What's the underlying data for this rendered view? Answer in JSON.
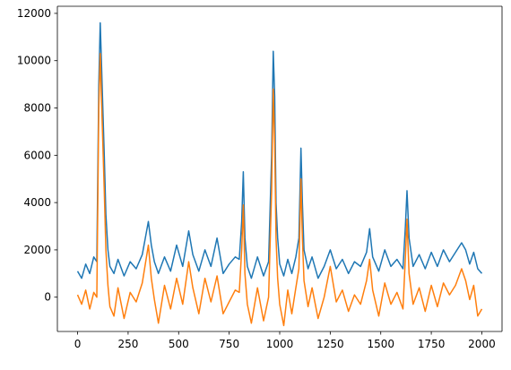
{
  "chart_data": {
    "type": "line",
    "title": "",
    "xlabel": "",
    "ylabel": "",
    "xlim": [
      -100,
      2100
    ],
    "ylim": [
      -1450,
      12300
    ],
    "grid": false,
    "xticks": [
      0,
      250,
      500,
      750,
      1000,
      1250,
      1500,
      1750,
      2000
    ],
    "xtick_labels": [
      "0",
      "250",
      "500",
      "750",
      "1000",
      "1250",
      "1500",
      "1750",
      "2000"
    ],
    "yticks": [
      0,
      2000,
      4000,
      6000,
      8000,
      10000,
      12000
    ],
    "ytick_labels": [
      "0",
      "2000",
      "4000",
      "6000",
      "8000",
      "10000",
      "12000"
    ],
    "series": [
      {
        "color": "#1f77b4",
        "x": [
          0,
          20,
          40,
          60,
          80,
          95,
          105,
          112,
          118,
          125,
          132,
          140,
          150,
          160,
          180,
          200,
          230,
          260,
          290,
          320,
          350,
          365,
          380,
          400,
          430,
          460,
          490,
          520,
          550,
          570,
          600,
          630,
          660,
          690,
          720,
          750,
          780,
          800,
          812,
          820,
          828,
          840,
          860,
          890,
          920,
          945,
          960,
          968,
          975,
          982,
          990,
          1000,
          1020,
          1040,
          1060,
          1080,
          1095,
          1105,
          1112,
          1120,
          1140,
          1160,
          1190,
          1220,
          1250,
          1280,
          1310,
          1340,
          1370,
          1400,
          1430,
          1445,
          1460,
          1490,
          1520,
          1550,
          1580,
          1610,
          1622,
          1630,
          1640,
          1660,
          1690,
          1720,
          1750,
          1780,
          1810,
          1840,
          1870,
          1900,
          1920,
          1940,
          1960,
          1980,
          2000
        ],
        "values": [
          1100,
          800,
          1400,
          1000,
          1700,
          1500,
          9000,
          11600,
          10000,
          8000,
          6000,
          3500,
          2000,
          1300,
          1000,
          1600,
          900,
          1500,
          1200,
          1800,
          3200,
          2200,
          1500,
          1000,
          1700,
          1100,
          2200,
          1300,
          2800,
          1800,
          1100,
          2000,
          1300,
          2500,
          1000,
          1400,
          1700,
          1600,
          3200,
          5300,
          2500,
          1300,
          800,
          1700,
          900,
          1500,
          6000,
          10400,
          8500,
          4000,
          2500,
          1400,
          900,
          1600,
          1000,
          1700,
          2500,
          6300,
          4000,
          2000,
          1200,
          1700,
          800,
          1300,
          2000,
          1200,
          1600,
          1000,
          1500,
          1300,
          1900,
          2900,
          1700,
          1100,
          2000,
          1300,
          1600,
          1200,
          3000,
          4500,
          2500,
          1300,
          1800,
          1200,
          1900,
          1300,
          2000,
          1500,
          1900,
          2300,
          2000,
          1400,
          1900,
          1200,
          1000
        ]
      },
      {
        "color": "#ff7f0e",
        "x": [
          0,
          20,
          40,
          60,
          80,
          95,
          105,
          112,
          118,
          125,
          132,
          140,
          150,
          160,
          180,
          200,
          230,
          260,
          290,
          320,
          350,
          365,
          380,
          400,
          430,
          460,
          490,
          520,
          550,
          570,
          600,
          630,
          660,
          690,
          720,
          750,
          780,
          800,
          812,
          820,
          828,
          840,
          860,
          890,
          920,
          945,
          960,
          968,
          975,
          982,
          990,
          1000,
          1020,
          1040,
          1060,
          1080,
          1095,
          1105,
          1112,
          1120,
          1140,
          1160,
          1190,
          1220,
          1250,
          1280,
          1310,
          1340,
          1370,
          1400,
          1430,
          1445,
          1460,
          1490,
          1520,
          1550,
          1580,
          1610,
          1622,
          1630,
          1640,
          1660,
          1690,
          1720,
          1750,
          1780,
          1810,
          1840,
          1870,
          1900,
          1920,
          1940,
          1960,
          1980,
          2000
        ],
        "values": [
          100,
          -300,
          300,
          -500,
          200,
          0,
          8000,
          10300,
          8500,
          6500,
          4500,
          2000,
          500,
          -400,
          -800,
          400,
          -900,
          200,
          -200,
          600,
          2200,
          800,
          -100,
          -1100,
          500,
          -500,
          800,
          -300,
          1500,
          400,
          -700,
          800,
          -200,
          900,
          -700,
          -200,
          300,
          200,
          2000,
          3900,
          1000,
          -300,
          -1100,
          400,
          -1000,
          0,
          4500,
          8800,
          6500,
          2500,
          800,
          -300,
          -1200,
          300,
          -700,
          400,
          1200,
          5000,
          2500,
          700,
          -400,
          400,
          -900,
          0,
          1300,
          -200,
          300,
          -600,
          100,
          -300,
          700,
          1600,
          300,
          -800,
          600,
          -300,
          200,
          -500,
          1700,
          3300,
          1000,
          -300,
          400,
          -600,
          500,
          -400,
          600,
          100,
          500,
          1200,
          700,
          -100,
          500,
          -800,
          -500
        ]
      }
    ]
  }
}
